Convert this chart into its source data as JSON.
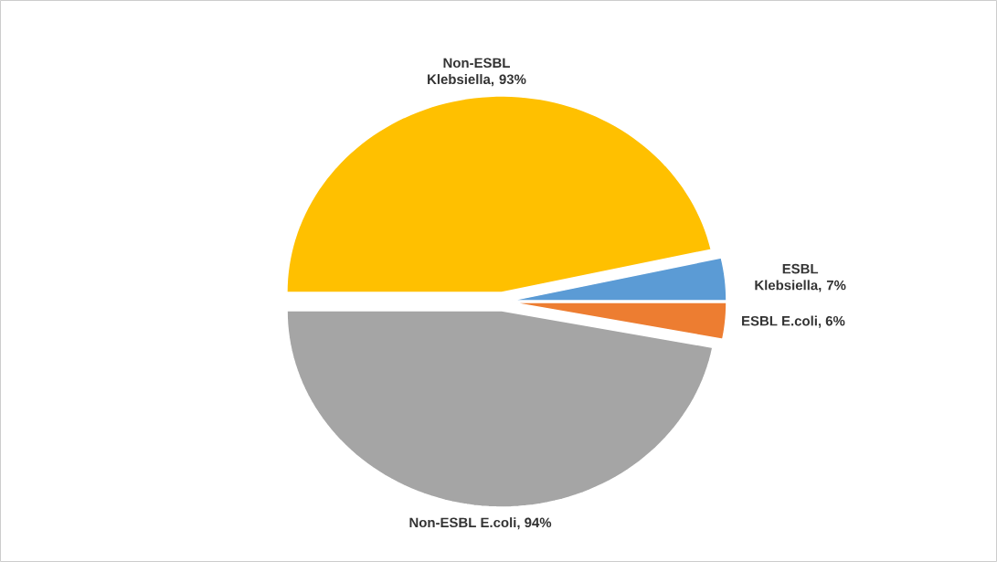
{
  "chart_data": {
    "type": "pie",
    "categories": [
      "ESBL Klebsiella",
      "ESBL E.coli",
      "Non-ESBL E.coli",
      "Non-ESBL Klebsiella"
    ],
    "values": [
      7,
      6,
      94,
      93
    ],
    "value_labels": [
      ", 7%",
      ", 6%",
      ", 94%",
      ", 93%"
    ],
    "colors": [
      "#5b9bd5",
      "#ed7d31",
      "#a5a5a5",
      "#ffc000"
    ]
  }
}
